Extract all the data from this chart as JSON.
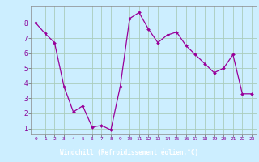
{
  "x": [
    0,
    1,
    2,
    3,
    4,
    5,
    6,
    7,
    8,
    9,
    10,
    11,
    12,
    13,
    14,
    15,
    16,
    17,
    18,
    19,
    20,
    21,
    22,
    23
  ],
  "y": [
    8.0,
    7.3,
    6.7,
    3.8,
    2.1,
    2.5,
    1.1,
    1.2,
    0.9,
    3.8,
    8.3,
    8.7,
    7.6,
    6.7,
    7.2,
    7.4,
    6.5,
    5.9,
    5.3,
    4.7,
    5.0,
    5.9,
    3.3,
    3.3
  ],
  "line_color": "#990099",
  "marker": "D",
  "marker_size": 2,
  "bg_color": "#cceeff",
  "grid_color": "#aaccbb",
  "xlabel": "Windchill (Refroidissement éolien,°C)",
  "xlabel_bg": "#880099",
  "xlabel_color": "#ffffff",
  "yticks": [
    1,
    2,
    3,
    4,
    5,
    6,
    7,
    8
  ],
  "xticks": [
    0,
    1,
    2,
    3,
    4,
    5,
    6,
    7,
    8,
    9,
    10,
    11,
    12,
    13,
    14,
    15,
    16,
    17,
    18,
    19,
    20,
    21,
    22,
    23
  ],
  "ylim": [
    0.6,
    9.1
  ],
  "xlim": [
    -0.5,
    23.5
  ]
}
